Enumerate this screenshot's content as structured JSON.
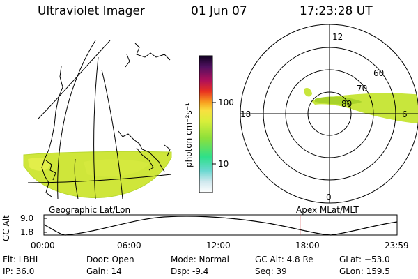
{
  "header": {
    "title": "Ultraviolet Imager",
    "date": "01 Jun 07",
    "time": "17:23:28 UT"
  },
  "colorbar": {
    "unit": "photon cm⁻²s⁻¹",
    "ticks": [
      "100",
      "10"
    ]
  },
  "left_panel": {
    "label": "Geographic Lat/Lon"
  },
  "right_panel": {
    "label": "Apex MLat/MLT",
    "mlt_labels": [
      "12",
      "18",
      "6",
      "0"
    ],
    "lat_labels": [
      "60",
      "70",
      "80"
    ]
  },
  "timeline": {
    "axis_label": "GC Alt",
    "y_ticks": [
      "9.0",
      "1.8"
    ],
    "x_ticks": [
      "00:00",
      "06:00",
      "12:00",
      "18:00",
      "23:59"
    ],
    "current_marker_hours": 17.39
  },
  "info": {
    "filter": "Flt: LBHL",
    "ip": "IP: 36.0",
    "door": "Door: Open",
    "gain": "Gain: 14",
    "mode": "Mode: Normal",
    "dsp": "Dsp:    -9.4",
    "gc_alt": "GC Alt: 4.8 Re",
    "seq": "Seq: 39",
    "glat": "GLat: −53.0",
    "glon": "GLon: 159.5"
  },
  "colors": {
    "emission": "#c8e63c",
    "emission_dark": "#a6d22a",
    "marker": "#cc2222"
  }
}
